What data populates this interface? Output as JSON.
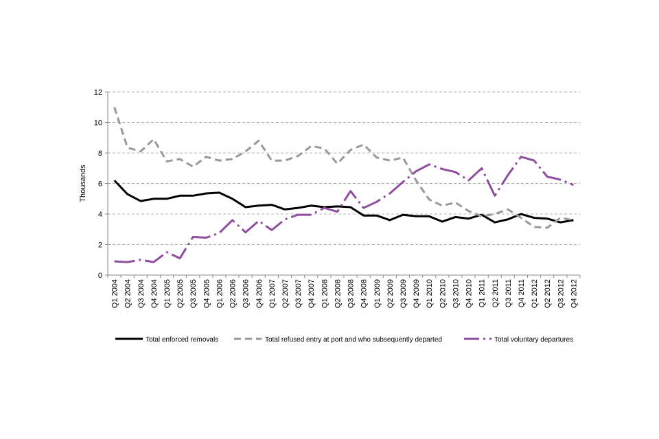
{
  "chart_data": {
    "type": "line",
    "ylabel": "Thousands",
    "xlabel": "",
    "ylim": [
      0,
      12
    ],
    "yticks": [
      0,
      2,
      4,
      6,
      8,
      10,
      12
    ],
    "grid": "horizontal dashed",
    "legend_position": "bottom",
    "categories": [
      "Q1 2004",
      "Q2 2004",
      "Q3 2004",
      "Q4 2004",
      "Q1 2005",
      "Q2 2005",
      "Q3 2005",
      "Q4 2005",
      "Q1 2006",
      "Q2 2006",
      "Q3 2006",
      "Q4 2006",
      "Q1 2007",
      "Q2 2007",
      "Q3 2007",
      "Q4 2007",
      "Q1 2008",
      "Q2 2008",
      "Q3 2008",
      "Q4 2008",
      "Q1 2009",
      "Q2 2009",
      "Q3 2009",
      "Q4 2009",
      "Q1 2010",
      "Q2 2010",
      "Q3 2010",
      "Q4 2010",
      "Q1 2011",
      "Q2 2011",
      "Q3 2011",
      "Q4 2011",
      "Q1 2012",
      "Q2 2012",
      "Q3 2012",
      "Q4 2012"
    ],
    "series": [
      {
        "name": "Total enforced removals",
        "color": "#000000",
        "style": "solid",
        "values": [
          6.2,
          5.3,
          4.85,
          5.0,
          5.0,
          5.2,
          5.2,
          5.35,
          5.4,
          5.0,
          4.45,
          4.55,
          4.6,
          4.3,
          4.4,
          4.55,
          4.45,
          4.5,
          4.45,
          3.9,
          3.9,
          3.6,
          3.95,
          3.85,
          3.85,
          3.5,
          3.8,
          3.7,
          3.95,
          3.45,
          3.65,
          4.0,
          3.75,
          3.7,
          3.45,
          3.6
        ]
      },
      {
        "name": "Total refused entry at port and who subsequently departed",
        "color": "#999999",
        "style": "dashed",
        "values": [
          11.0,
          8.35,
          8.1,
          8.9,
          7.45,
          7.6,
          7.1,
          7.75,
          7.5,
          7.6,
          8.1,
          8.8,
          7.5,
          7.5,
          7.8,
          8.45,
          8.3,
          7.3,
          8.2,
          8.55,
          7.7,
          7.5,
          7.7,
          6.2,
          4.95,
          4.55,
          4.75,
          4.2,
          3.85,
          4.0,
          4.3,
          3.75,
          3.15,
          3.1,
          3.75,
          3.6
        ]
      },
      {
        "name": "Total voluntary departures",
        "color": "#8E4D9E",
        "style": "dash-dot",
        "values": [
          0.9,
          0.85,
          1.0,
          0.85,
          1.5,
          1.1,
          2.5,
          2.45,
          2.75,
          3.6,
          2.8,
          3.55,
          2.95,
          3.65,
          3.95,
          3.95,
          4.4,
          4.15,
          5.5,
          4.4,
          4.8,
          5.35,
          6.1,
          6.8,
          7.25,
          6.95,
          6.75,
          6.2,
          7.0,
          5.2,
          6.55,
          7.75,
          7.5,
          6.45,
          6.25,
          5.9
        ]
      }
    ]
  }
}
